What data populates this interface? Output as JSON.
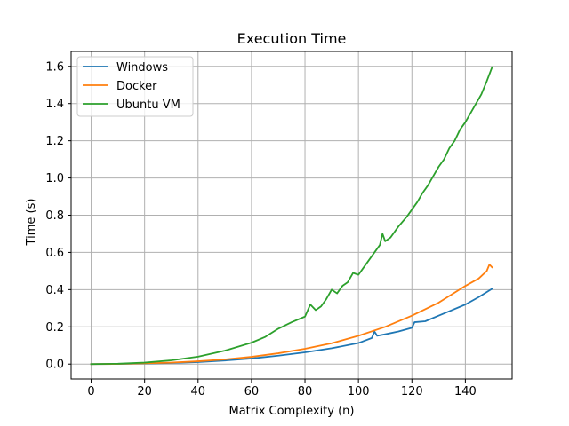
{
  "chart_data": {
    "type": "line",
    "title": "Execution Time",
    "xlabel": "Matrix Complexity (n)",
    "ylabel": "Time (s)",
    "xlim": [
      -7.5,
      157.5
    ],
    "ylim": [
      -0.08,
      1.68
    ],
    "xticks": [
      0,
      20,
      40,
      60,
      80,
      100,
      120,
      140
    ],
    "yticks": [
      0.0,
      0.2,
      0.4,
      0.6,
      0.8,
      1.0,
      1.2,
      1.4,
      1.6
    ],
    "grid": true,
    "legend_position": "top-left",
    "series": [
      {
        "name": "Windows",
        "color": "#1f77b4",
        "points": [
          [
            0,
            0
          ],
          [
            10,
            0.001
          ],
          [
            20,
            0.003
          ],
          [
            30,
            0.006
          ],
          [
            40,
            0.011
          ],
          [
            50,
            0.019
          ],
          [
            60,
            0.03
          ],
          [
            70,
            0.045
          ],
          [
            80,
            0.063
          ],
          [
            90,
            0.085
          ],
          [
            100,
            0.113
          ],
          [
            105,
            0.14
          ],
          [
            106,
            0.175
          ],
          [
            107,
            0.152
          ],
          [
            110,
            0.16
          ],
          [
            115,
            0.175
          ],
          [
            120,
            0.195
          ],
          [
            121,
            0.225
          ],
          [
            125,
            0.23
          ],
          [
            130,
            0.26
          ],
          [
            135,
            0.29
          ],
          [
            140,
            0.32
          ],
          [
            145,
            0.36
          ],
          [
            150,
            0.405
          ]
        ]
      },
      {
        "name": "Docker",
        "color": "#ff7f0e",
        "points": [
          [
            0,
            0
          ],
          [
            10,
            0.001
          ],
          [
            20,
            0.004
          ],
          [
            30,
            0.008
          ],
          [
            40,
            0.015
          ],
          [
            50,
            0.025
          ],
          [
            60,
            0.039
          ],
          [
            70,
            0.058
          ],
          [
            80,
            0.082
          ],
          [
            90,
            0.112
          ],
          [
            100,
            0.152
          ],
          [
            110,
            0.2
          ],
          [
            120,
            0.26
          ],
          [
            130,
            0.33
          ],
          [
            140,
            0.42
          ],
          [
            145,
            0.46
          ],
          [
            148,
            0.5
          ],
          [
            149,
            0.535
          ],
          [
            150,
            0.52
          ]
        ]
      },
      {
        "name": "Ubuntu VM",
        "color": "#2ca02c",
        "points": [
          [
            0,
            0
          ],
          [
            10,
            0.002
          ],
          [
            20,
            0.008
          ],
          [
            30,
            0.02
          ],
          [
            40,
            0.04
          ],
          [
            50,
            0.072
          ],
          [
            60,
            0.115
          ],
          [
            65,
            0.145
          ],
          [
            70,
            0.19
          ],
          [
            75,
            0.225
          ],
          [
            80,
            0.255
          ],
          [
            82,
            0.32
          ],
          [
            84,
            0.29
          ],
          [
            86,
            0.31
          ],
          [
            88,
            0.35
          ],
          [
            90,
            0.4
          ],
          [
            92,
            0.38
          ],
          [
            94,
            0.42
          ],
          [
            96,
            0.44
          ],
          [
            98,
            0.49
          ],
          [
            100,
            0.48
          ],
          [
            102,
            0.52
          ],
          [
            104,
            0.56
          ],
          [
            106,
            0.6
          ],
          [
            108,
            0.64
          ],
          [
            109,
            0.7
          ],
          [
            110,
            0.66
          ],
          [
            112,
            0.68
          ],
          [
            115,
            0.74
          ],
          [
            118,
            0.79
          ],
          [
            120,
            0.83
          ],
          [
            122,
            0.87
          ],
          [
            124,
            0.92
          ],
          [
            126,
            0.96
          ],
          [
            128,
            1.01
          ],
          [
            130,
            1.06
          ],
          [
            132,
            1.1
          ],
          [
            134,
            1.16
          ],
          [
            136,
            1.2
          ],
          [
            138,
            1.26
          ],
          [
            140,
            1.3
          ],
          [
            142,
            1.35
          ],
          [
            144,
            1.4
          ],
          [
            146,
            1.45
          ],
          [
            148,
            1.52
          ],
          [
            150,
            1.595
          ]
        ]
      }
    ]
  }
}
